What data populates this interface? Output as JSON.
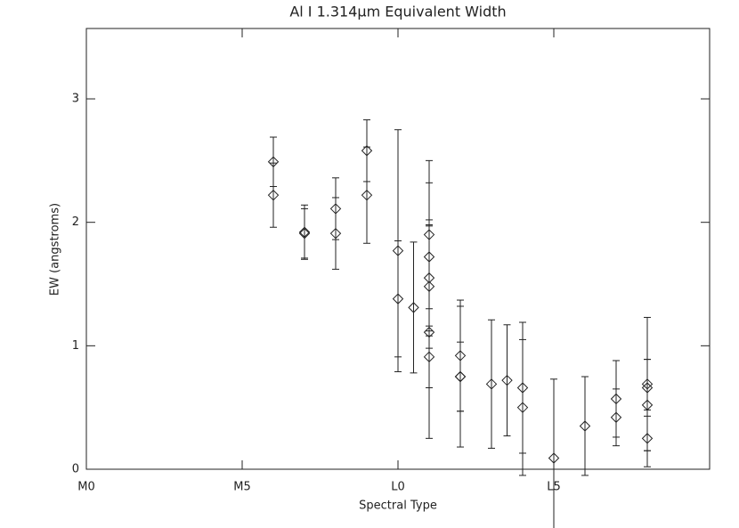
{
  "chart_data": {
    "type": "scatter",
    "title": "Al I 1.314μm Equivalent Width",
    "x_label": "Spectral Type",
    "y_label": "EW (angstroms)",
    "xlim": [
      0,
      20
    ],
    "ylim": [
      0,
      3.57
    ],
    "xticks": [
      {
        "value": 0,
        "label": "M0"
      },
      {
        "value": 5,
        "label": "M5"
      },
      {
        "value": 10,
        "label": "L0"
      },
      {
        "value": 15,
        "label": "L5"
      }
    ],
    "yticks": [
      0,
      1,
      2,
      3
    ],
    "color": "#222222",
    "series": [
      {
        "name": "EW",
        "x": [
          6,
          6,
          7,
          7,
          8,
          8,
          9,
          9,
          10,
          10,
          10.5,
          11,
          11,
          11,
          11,
          11,
          11,
          12,
          12,
          12,
          13,
          13.5,
          14,
          14,
          15,
          16,
          17,
          17,
          18,
          18,
          18,
          18
        ],
        "values": [
          2.49,
          2.22,
          1.92,
          1.91,
          2.11,
          1.91,
          2.58,
          2.22,
          1.77,
          1.38,
          1.31,
          1.9,
          1.72,
          1.55,
          1.48,
          1.11,
          0.91,
          0.92,
          0.75,
          0.75,
          0.69,
          0.72,
          0.66,
          0.5,
          0.09,
          0.35,
          0.57,
          0.42,
          0.69,
          0.66,
          0.52,
          0.25
        ],
        "errors": [
          0.2,
          0.26,
          0.22,
          0.2,
          0.25,
          0.29,
          0.25,
          0.39,
          0.98,
          0.47,
          0.53,
          0.6,
          0.6,
          0.47,
          0.5,
          0.86,
          0.25,
          0.45,
          0.57,
          0.28,
          0.52,
          0.45,
          0.53,
          0.55,
          0.64,
          0.4,
          0.31,
          0.23,
          0.54,
          0.23,
          0.37,
          0.23
        ]
      }
    ]
  }
}
